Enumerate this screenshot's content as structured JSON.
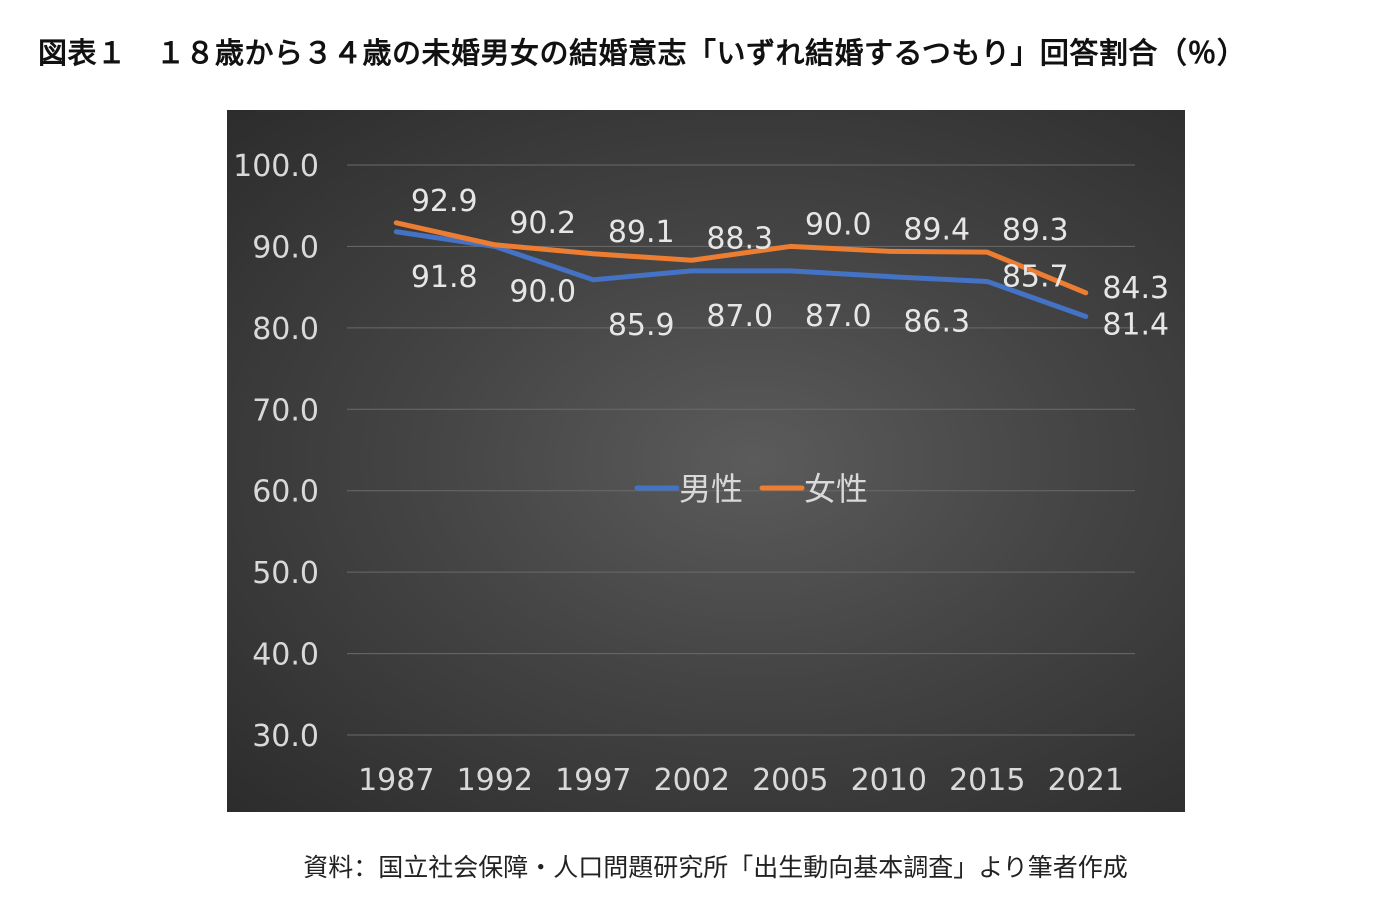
{
  "title": "図表１　１８歳から３４歳の未婚男女の結婚意志「いずれ結婚するつもり」回答割合（％）",
  "source": "資料：国立社会保障・人口問題研究所「出生動向基本調査」より筆者作成",
  "chart_data": {
    "type": "line",
    "categories": [
      "1987",
      "1992",
      "1997",
      "2002",
      "2005",
      "2010",
      "2015",
      "2021"
    ],
    "y_ticks": [
      "30.0",
      "40.0",
      "50.0",
      "60.0",
      "70.0",
      "80.0",
      "90.0",
      "100.0"
    ],
    "ylim": [
      30,
      100
    ],
    "grid": true,
    "legend_position": "center",
    "series": [
      {
        "name": "男性",
        "color": "#4472C4",
        "values": [
          91.8,
          90.0,
          85.9,
          87.0,
          87.0,
          86.3,
          85.7,
          81.4
        ],
        "labels": [
          "91.8",
          "90.0",
          "85.9",
          "87.0",
          "87.0",
          "86.3",
          "85.7",
          "81.4"
        ]
      },
      {
        "name": "女性",
        "color": "#ED7D31",
        "values": [
          92.9,
          90.2,
          89.1,
          88.3,
          90.0,
          89.4,
          89.3,
          84.3
        ],
        "labels": [
          "92.9",
          "90.2",
          "89.1",
          "88.3",
          "90.0",
          "89.4",
          "89.3",
          "84.3"
        ]
      }
    ]
  }
}
